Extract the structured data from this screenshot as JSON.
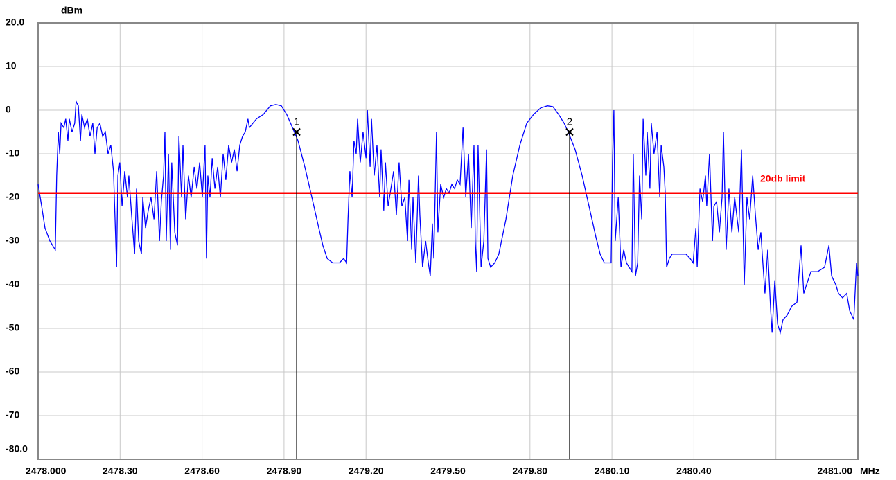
{
  "chart_data": {
    "type": "line",
    "y_unit": "dBm",
    "x_unit": "MHz",
    "xlim": [
      2478,
      2481
    ],
    "ylim": [
      -80,
      20
    ],
    "xticks": [
      {
        "value": 2478,
        "label": "2478.000"
      },
      {
        "value": 2478.3,
        "label": "2478.30"
      },
      {
        "value": 2478.6,
        "label": "2478.60"
      },
      {
        "value": 2478.9,
        "label": "2478.90"
      },
      {
        "value": 2479.2,
        "label": "2479.20"
      },
      {
        "value": 2479.5,
        "label": "2479.50"
      },
      {
        "value": 2479.8,
        "label": "2479.80"
      },
      {
        "value": 2480.1,
        "label": "2480.10"
      },
      {
        "value": 2480.4,
        "label": "2480.40"
      },
      {
        "value": 2480.7,
        "label": null
      },
      {
        "value": 2481,
        "label": "2481.00"
      }
    ],
    "yticks": [
      {
        "value": 20,
        "label": "20.0"
      },
      10,
      0,
      -10,
      -20,
      -30,
      -40,
      -50,
      -60,
      -70,
      {
        "value": -80,
        "label": "-80.0"
      }
    ],
    "grid": true,
    "color": "#0000ff",
    "x": [
      2478.0,
      2478.013,
      2478.025,
      2478.043,
      2478.063,
      2478.068,
      2478.074,
      2478.079,
      2478.084,
      2478.094,
      2478.101,
      2478.109,
      2478.114,
      2478.124,
      2478.134,
      2478.139,
      2478.147,
      2478.155,
      2478.16,
      2478.17,
      2478.18,
      2478.19,
      2478.2,
      2478.208,
      2478.216,
      2478.226,
      2478.236,
      2478.246,
      2478.256,
      2478.266,
      2478.276,
      2478.287,
      2478.292,
      2478.299,
      2478.307,
      2478.317,
      2478.327,
      2478.332,
      2478.342,
      2478.353,
      2478.36,
      2478.368,
      2478.378,
      2478.383,
      2478.393,
      2478.403,
      2478.413,
      2478.424,
      2478.434,
      2478.444,
      2478.451,
      2478.459,
      2478.464,
      2478.469,
      2478.477,
      2478.484,
      2478.489,
      2478.5,
      2478.51,
      2478.515,
      2478.525,
      2478.53,
      2478.54,
      2478.55,
      2478.56,
      2478.571,
      2478.581,
      2478.591,
      2478.601,
      2478.611,
      2478.616,
      2478.621,
      2478.629,
      2478.637,
      2478.647,
      2478.657,
      2478.667,
      2478.677,
      2478.687,
      2478.697,
      2478.708,
      2478.718,
      2478.728,
      2478.738,
      2478.748,
      2478.758,
      2478.768,
      2478.773,
      2478.799,
      2478.824,
      2478.85,
      2478.87,
      2478.89,
      2478.91,
      2478.931,
      2478.951,
      2478.976,
      2479.002,
      2479.027,
      2479.042,
      2479.058,
      2479.078,
      2479.103,
      2479.118,
      2479.129,
      2479.134,
      2479.141,
      2479.149,
      2479.156,
      2479.164,
      2479.169,
      2479.179,
      2479.189,
      2479.2,
      2479.205,
      2479.215,
      2479.22,
      2479.23,
      2479.24,
      2479.25,
      2479.255,
      2479.265,
      2479.271,
      2479.281,
      2479.291,
      2479.301,
      2479.311,
      2479.321,
      2479.331,
      2479.342,
      2479.352,
      2479.357,
      2479.367,
      2479.372,
      2479.382,
      2479.392,
      2479.397,
      2479.407,
      2479.418,
      2479.428,
      2479.435,
      2479.443,
      2479.448,
      2479.458,
      2479.463,
      2479.473,
      2479.484,
      2479.494,
      2479.504,
      2479.514,
      2479.524,
      2479.534,
      2479.544,
      2479.555,
      2479.565,
      2479.575,
      2479.585,
      2479.595,
      2479.6,
      2479.605,
      2479.61,
      2479.621,
      2479.631,
      2479.641,
      2479.646,
      2479.656,
      2479.671,
      2479.686,
      2479.712,
      2479.737,
      2479.763,
      2479.788,
      2479.813,
      2479.839,
      2479.864,
      2479.884,
      2479.905,
      2479.925,
      2479.94,
      2479.965,
      2479.991,
      2480.016,
      2480.041,
      2480.057,
      2480.072,
      2480.087,
      2480.097,
      2480.102,
      2480.107,
      2480.112,
      2480.123,
      2480.133,
      2480.143,
      2480.153,
      2480.163,
      2480.173,
      2480.178,
      2480.186,
      2480.194,
      2480.201,
      2480.209,
      2480.214,
      2480.224,
      2480.229,
      2480.239,
      2480.244,
      2480.254,
      2480.265,
      2480.275,
      2480.28,
      2480.29,
      2480.295,
      2480.3,
      2480.31,
      2480.32,
      2480.341,
      2480.371,
      2480.386,
      2480.397,
      2480.407,
      2480.412,
      2480.422,
      2480.432,
      2480.442,
      2480.447,
      2480.457,
      2480.468,
      2480.473,
      2480.483,
      2480.493,
      2480.503,
      2480.508,
      2480.518,
      2480.528,
      2480.539,
      2480.549,
      2480.564,
      2480.574,
      2480.584,
      2480.594,
      2480.604,
      2480.615,
      2480.625,
      2480.635,
      2480.645,
      2480.65,
      2480.66,
      2480.67,
      2480.681,
      2480.686,
      2480.696,
      2480.706,
      2480.716,
      2480.726,
      2480.741,
      2480.757,
      2480.777,
      2480.792,
      2480.802,
      2480.812,
      2480.828,
      2480.853,
      2480.878,
      2480.894,
      2480.904,
      2480.919,
      2480.929,
      2480.944,
      2480.959,
      2480.97,
      2480.985,
      2480.995,
      2481.0
    ],
    "values": [
      -17,
      -22,
      -27,
      -30,
      -32,
      -15,
      -5,
      -10,
      -3,
      -4,
      -2,
      -7,
      -2,
      -5,
      -3,
      2,
      1,
      -7,
      -1,
      -4,
      -2,
      -6,
      -3,
      -10,
      -4,
      -3,
      -6,
      -5,
      -10,
      -8,
      -14,
      -36,
      -15,
      -12,
      -22,
      -14,
      -20,
      -15,
      -24,
      -33,
      -18,
      -30,
      -33,
      -20,
      -27,
      -23,
      -20,
      -25,
      -14,
      -30,
      -21,
      -15,
      -5,
      -30,
      -10,
      -32,
      -12,
      -28,
      -31,
      -6,
      -20,
      -8,
      -25,
      -15,
      -20,
      -13,
      -18,
      -12,
      -20,
      -8,
      -34,
      -15,
      -20,
      -11,
      -18,
      -13,
      -20,
      -10,
      -16,
      -8,
      -12,
      -9,
      -14,
      -8,
      -6,
      -5,
      -2,
      -4,
      -2,
      -1,
      1,
      1.3,
      1,
      -1,
      -4,
      -7,
      -13,
      -20,
      -27,
      -31,
      -34,
      -35,
      -35,
      -34,
      -35,
      -25,
      -14,
      -20,
      -7,
      -10,
      -2,
      -12,
      -5,
      -11,
      0,
      -13,
      -2,
      -15,
      -8,
      -20,
      -9,
      -23,
      -12,
      -22,
      -18,
      -14,
      -24,
      -12,
      -22,
      -20,
      -30,
      -16,
      -32,
      -20,
      -35,
      -15,
      -24,
      -36,
      -30,
      -35,
      -38,
      -26,
      -34,
      -5,
      -28,
      -17,
      -20,
      -18,
      -19,
      -17,
      -18,
      -16,
      -17,
      -4,
      -20,
      -10,
      -27,
      -8,
      -30,
      -37,
      -8,
      -36,
      -30,
      -9,
      -34,
      -36,
      -35,
      -33,
      -25,
      -15,
      -8,
      -3,
      -1,
      0.5,
      1,
      0.8,
      -1,
      -3,
      -5,
      -9,
      -15,
      -22,
      -29,
      -33,
      -35,
      -35,
      -35,
      -12,
      0,
      -30,
      -20,
      -36,
      -32,
      -35,
      -36,
      -37,
      -10,
      -38,
      -35,
      -15,
      -25,
      -2,
      -15,
      -5,
      -18,
      -3,
      -10,
      -5,
      -20,
      -8,
      -13,
      -19,
      -36,
      -34,
      -33,
      -33,
      -33,
      -34,
      -35,
      -27,
      -36,
      -18,
      -21,
      -15,
      -22,
      -10,
      -30,
      -22,
      -21,
      -28,
      -20,
      -5,
      -32,
      -18,
      -28,
      -20,
      -28,
      -9,
      -40,
      -20,
      -25,
      -15,
      -24,
      -32,
      -28,
      -33,
      -42,
      -32,
      -46,
      -51,
      -39,
      -49,
      -51,
      -48,
      -47,
      -45,
      -44,
      -31,
      -42,
      -40,
      -37,
      -37,
      -36,
      -31,
      -38,
      -40,
      -42,
      -43,
      -42,
      -46,
      -48,
      -35,
      -38
    ],
    "limit": {
      "value": -19,
      "label": "20db limit",
      "color": "#ff0000"
    },
    "markers": [
      {
        "label": "1",
        "x": 2478.946,
        "value": -5
      },
      {
        "label": "2",
        "x": 2479.945,
        "value": -5
      }
    ]
  }
}
